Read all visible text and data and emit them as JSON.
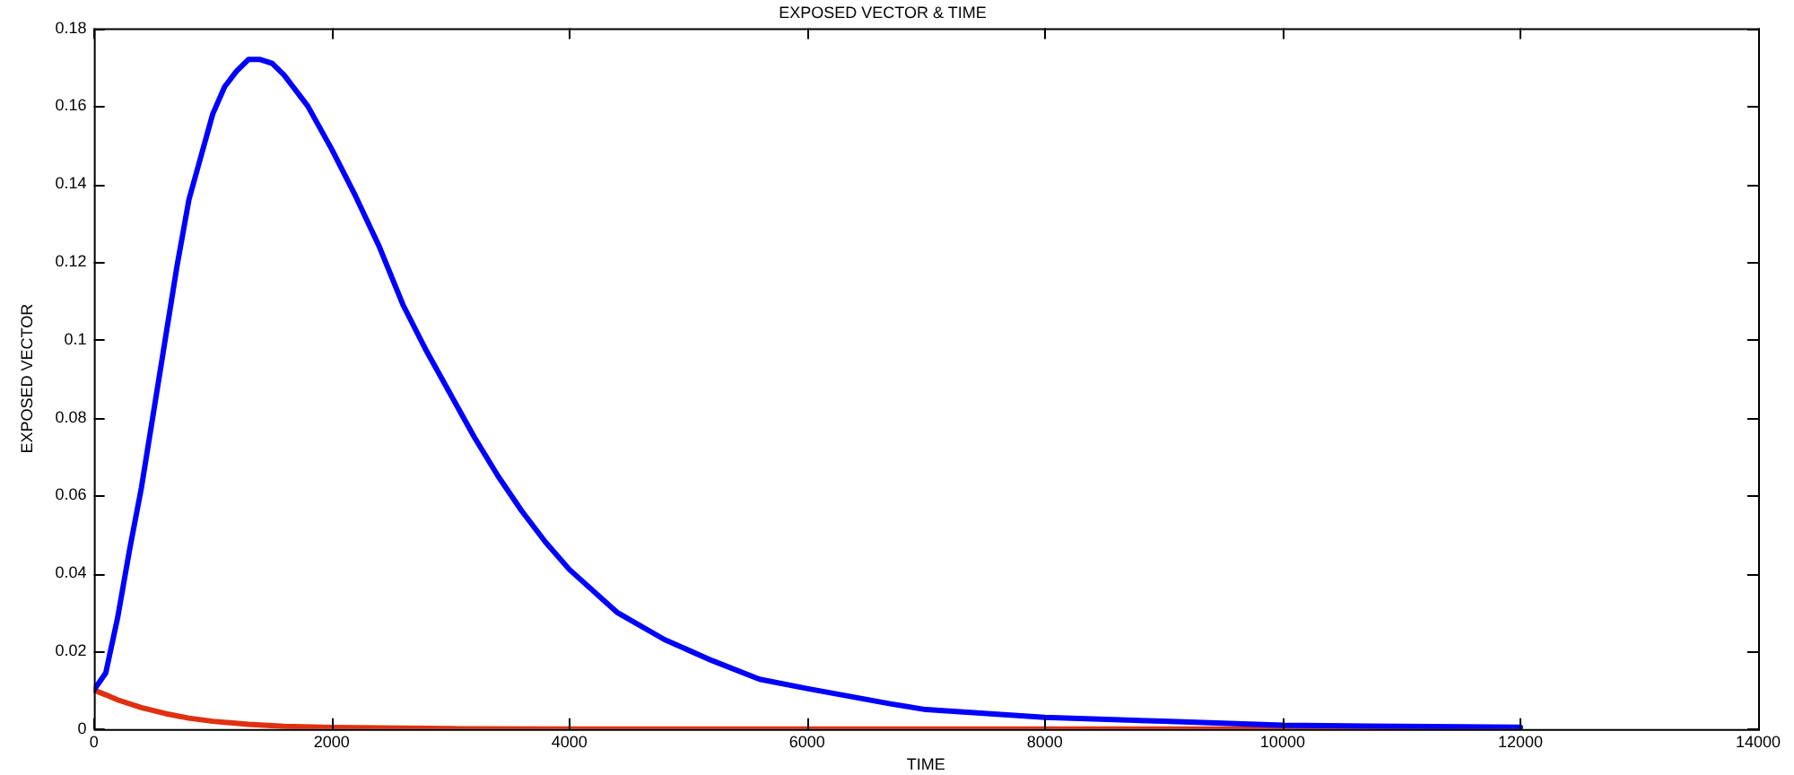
{
  "chart_data": {
    "type": "line",
    "title": "EXPOSED VECTOR & TIME",
    "xlabel": "TIME",
    "ylabel": "EXPOSED VECTOR",
    "xlim": [
      0,
      14000
    ],
    "xticks": [
      0,
      2000,
      4000,
      6000,
      8000,
      10000,
      12000,
      14000
    ],
    "ylim": [
      0,
      0.18
    ],
    "yticks": [
      0,
      0.02,
      0.04,
      0.06,
      0.08,
      0.1,
      0.12,
      0.14,
      0.16,
      0.18
    ],
    "grid": false,
    "legend": false,
    "marker": "none",
    "line_style": "solid",
    "series": [
      {
        "color": "#0000ff",
        "x": [
          0,
          100,
          200,
          300,
          400,
          500,
          600,
          700,
          800,
          900,
          1000,
          1100,
          1200,
          1300,
          1400,
          1500,
          1600,
          1800,
          2000,
          2200,
          2400,
          2600,
          2800,
          3000,
          3200,
          3400,
          3600,
          3800,
          4000,
          4400,
          4800,
          5200,
          5600,
          6000,
          6700,
          7000,
          8000,
          9000,
          10000,
          11000,
          12000
        ],
        "values": [
          0.01,
          0.0144,
          0.0286,
          0.046,
          0.062,
          0.081,
          0.1,
          0.119,
          0.136,
          0.147,
          0.158,
          0.165,
          0.169,
          0.172,
          0.172,
          0.171,
          0.168,
          0.16,
          0.149,
          0.137,
          0.124,
          0.109,
          0.097,
          0.086,
          0.075,
          0.065,
          0.056,
          0.048,
          0.041,
          0.03,
          0.023,
          0.0176,
          0.0128,
          0.0104,
          0.0065,
          0.005,
          0.003,
          0.002,
          0.001,
          0.0007,
          0.0005
        ]
      },
      {
        "color": "#e03010",
        "x": [
          0,
          100,
          200,
          400,
          600,
          800,
          1000,
          1300,
          1600,
          2000,
          3000,
          4000,
          12000
        ],
        "values": [
          0.01,
          0.0088,
          0.0075,
          0.0055,
          0.004,
          0.0028,
          0.002,
          0.0012,
          0.0007,
          0.0004,
          0.0001,
          0,
          0
        ]
      }
    ]
  }
}
